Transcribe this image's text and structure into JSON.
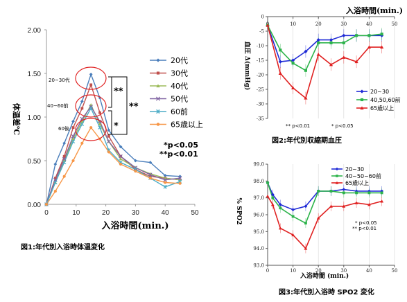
{
  "chart_data": [
    {
      "type": "line",
      "caption": "図1:年代別入浴時体温変化",
      "xlabel": "入浴時間(min.)",
      "ylabel": "体温差℃",
      "xlim": [
        0,
        50
      ],
      "ylim": [
        0,
        2
      ],
      "xticks": [
        "0",
        "10",
        "20",
        "30",
        "40",
        "50"
      ],
      "yticks": [
        "0.00",
        "0.50",
        "1.00",
        "1.50",
        "2.00"
      ],
      "legend_position": "right",
      "x": [
        0,
        3,
        6,
        9,
        12,
        15,
        18,
        21,
        25,
        30,
        35,
        40,
        45
      ],
      "series": [
        {
          "name": "20代",
          "color": "#4a7ebb",
          "marker": "diamond",
          "values": [
            0,
            0.46,
            0.7,
            0.95,
            1.18,
            1.49,
            1.22,
            0.85,
            0.66,
            0.5,
            0.48,
            0.33,
            0.32
          ]
        },
        {
          "name": "30代",
          "color": "#c0504d",
          "marker": "square",
          "values": [
            0,
            0.3,
            0.55,
            0.88,
            1.1,
            1.37,
            1.05,
            0.78,
            0.55,
            0.4,
            0.32,
            0.3,
            0.28
          ]
        },
        {
          "name": "40代",
          "color": "#9bbb59",
          "marker": "triangle",
          "values": [
            0,
            0.25,
            0.5,
            0.75,
            0.95,
            1.14,
            0.92,
            0.72,
            0.52,
            0.42,
            0.35,
            0.3,
            0.28
          ]
        },
        {
          "name": "50代",
          "color": "#8064a2",
          "marker": "x",
          "values": [
            0,
            0.28,
            0.52,
            0.78,
            0.98,
            1.12,
            0.95,
            0.72,
            0.55,
            0.42,
            0.34,
            0.28,
            0.3
          ]
        },
        {
          "name": "60前",
          "color": "#4bacc6",
          "marker": "star",
          "values": [
            0,
            0.25,
            0.48,
            0.72,
            0.92,
            1.1,
            0.88,
            0.62,
            0.48,
            0.4,
            0.3,
            0.2,
            0.26
          ]
        },
        {
          "name": "65歳以上",
          "color": "#f79646",
          "marker": "circle",
          "values": [
            0,
            0.15,
            0.32,
            0.5,
            0.7,
            0.88,
            0.75,
            0.6,
            0.46,
            0.38,
            0.3,
            0.25,
            0.24
          ]
        }
      ],
      "annotations": [
        "20~30代",
        "40~60前",
        "60後"
      ],
      "significance": [
        "**",
        "**",
        "*"
      ],
      "pvalues": [
        "*p<0.05",
        "**p<0.01"
      ]
    },
    {
      "type": "line",
      "caption": "図2:年代別収縮期血圧",
      "xlabel": "入浴時間(min.)",
      "ylabel": "血圧 Δ(mmHg)",
      "xlim": [
        0,
        50
      ],
      "ylim": [
        -35,
        0
      ],
      "xticks": [
        "0",
        "10",
        "20",
        "30",
        "40",
        "50"
      ],
      "yticks": [
        "0",
        "-5",
        "-10",
        "-15",
        "-20",
        "-25",
        "-30",
        "-35"
      ],
      "legend_position": "bottom-right",
      "x": [
        0,
        5,
        10,
        15,
        20,
        25,
        30,
        35,
        40,
        45
      ],
      "series": [
        {
          "name": "20~30",
          "color": "#1f2ad6",
          "marker": "diamond",
          "values": [
            -3,
            -15.5,
            -15,
            -12,
            -8,
            -8,
            -6.5,
            -6.5,
            -6.5,
            -6.5
          ]
        },
        {
          "name": "40,50,60前",
          "color": "#2cb34a",
          "marker": "square",
          "values": [
            -3,
            -11.5,
            -16,
            -18.5,
            -9,
            -9,
            -9,
            -6.5,
            -6.5,
            -6
          ]
        },
        {
          "name": "65歳以上",
          "color": "#e02020",
          "marker": "triangle",
          "values": [
            -3,
            -19.5,
            -24.5,
            -28,
            -13,
            -16.5,
            -14,
            -15.5,
            -10.5,
            -10.5
          ]
        }
      ],
      "pvalues": [
        "** p<0.01",
        "* p<0.05"
      ]
    },
    {
      "type": "line",
      "caption": "図3:年代別入浴時 SPO2 変化",
      "xlabel": "入浴時間 (min.)",
      "ylabel": "% SPO2",
      "xlim": [
        0,
        50
      ],
      "ylim": [
        93,
        99
      ],
      "xticks": [
        "0",
        "10",
        "20",
        "30",
        "40",
        "50"
      ],
      "yticks": [
        "93.0",
        "94.0",
        "95.0",
        "96.0",
        "97.0",
        "98.0",
        "99.0"
      ],
      "legend_position": "top-right",
      "x": [
        0,
        2,
        5,
        10,
        15,
        20,
        25,
        30,
        35,
        40,
        45
      ],
      "series": [
        {
          "name": "20~30",
          "color": "#1f2ad6",
          "marker": "diamond",
          "values": [
            97.9,
            97.2,
            96.6,
            96.3,
            96.5,
            97.4,
            97.4,
            97.5,
            97.4,
            97.4,
            97.4
          ]
        },
        {
          "name": "40~50~60前",
          "color": "#2cb34a",
          "marker": "square",
          "values": [
            97.9,
            97.0,
            96.4,
            95.9,
            95.5,
            97.4,
            97.4,
            97.3,
            97.3,
            97.3,
            97.3
          ]
        },
        {
          "name": "65歳以上",
          "color": "#e02020",
          "marker": "triangle",
          "values": [
            97.1,
            96.6,
            95.2,
            94.8,
            94.0,
            95.8,
            96.5,
            96.5,
            96.7,
            96.6,
            96.8
          ]
        }
      ],
      "pvalues": [
        "* p<0.05",
        "** p<0.01"
      ]
    }
  ]
}
